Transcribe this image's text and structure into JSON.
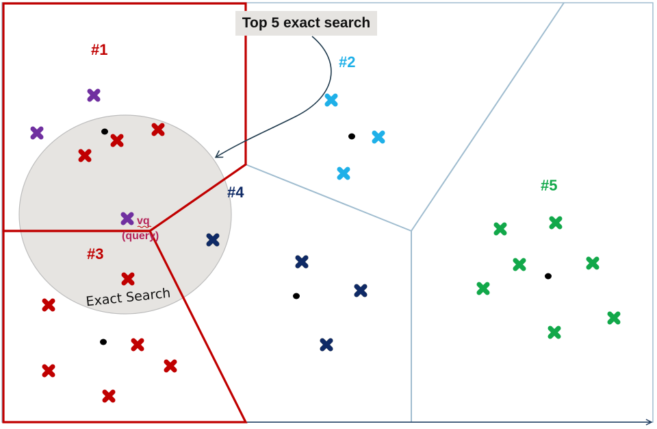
{
  "callout": {
    "text": "Top 5 exact search"
  },
  "colors": {
    "cluster_1": "#c00000",
    "cluster_2": "#1fb0e8",
    "cluster_3": "#c00000",
    "cluster_4": "#0f2a66",
    "cluster_5": "#12a84a",
    "purple": "#7030a0",
    "query_label": "#b5245a",
    "boundary": "#9fbccf",
    "highlight_boundary": "#c00000",
    "search_circle": "#e6e4e1",
    "arrow": "#1f3a4d"
  },
  "clusters": [
    {
      "id": "1",
      "label": "#1",
      "color_key": "cluster_1"
    },
    {
      "id": "2",
      "label": "#2",
      "color_key": "cluster_2"
    },
    {
      "id": "3",
      "label": "#3",
      "color_key": "cluster_3"
    },
    {
      "id": "4",
      "label": "#4",
      "color_key": "cluster_4"
    },
    {
      "id": "5",
      "label": "#5",
      "color_key": "cluster_5"
    }
  ],
  "query": {
    "label_line1": "vq",
    "label_line2": "(query)"
  },
  "exact_search": {
    "label": "Exact Search"
  }
}
